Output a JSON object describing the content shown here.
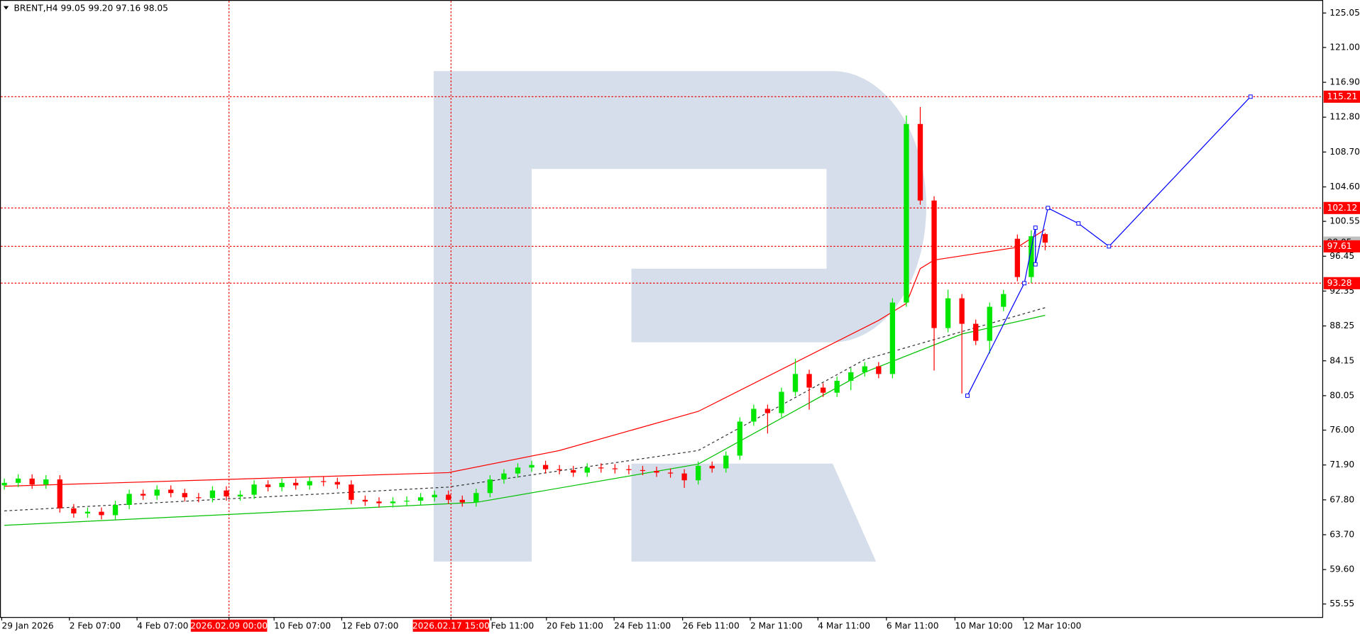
{
  "chart_data": {
    "type": "candlestick",
    "header": {
      "symbol": "BRENT,H4",
      "ohlc": "99.05 99.20 97.16 98.05"
    },
    "up_color": "#00e600",
    "down_color": "#ff0000",
    "ylim": [
      55.55,
      125.05
    ],
    "yticks": [
      125.05,
      {
        "value": 121,
        "label": "121.00"
      },
      {
        "value": 116.9,
        "label": "116.90"
      },
      {
        "value": 112.8,
        "label": "112.80"
      },
      {
        "value": 108.7,
        "label": "108.70"
      },
      {
        "value": 104.6,
        "label": "104.60"
      },
      100.55,
      96.45,
      92.35,
      88.25,
      84.15,
      80.05,
      {
        "value": 76,
        "label": "76.00"
      },
      {
        "value": 71.9,
        "label": "71.90"
      },
      {
        "value": 67.8,
        "label": "67.80"
      },
      {
        "value": 63.7,
        "label": "63.70"
      },
      {
        "value": 59.6,
        "label": "59.60"
      },
      55.55
    ],
    "x_labels": [
      {
        "text": "29 Jan 2026",
        "highlight": false
      },
      {
        "text": "2 Feb 07:00",
        "highlight": false
      },
      {
        "text": "4 Feb 07:00",
        "highlight": false
      },
      {
        "text": "2026.02.09 00:00",
        "highlight": true
      },
      {
        "text": "10 Feb 07:00",
        "highlight": false
      },
      {
        "text": "12 Feb 07:00",
        "highlight": false
      },
      {
        "text": "2026.02.17 15:00",
        "highlight": true
      },
      {
        "text": "Feb 11:00",
        "highlight": false
      },
      {
        "text": "20 Feb 11:00",
        "highlight": false
      },
      {
        "text": "24 Feb 11:00",
        "highlight": false
      },
      {
        "text": "26 Feb 11:00",
        "highlight": false
      },
      {
        "text": "2 Mar 11:00",
        "highlight": false
      },
      {
        "text": "4 Mar 11:00",
        "highlight": false
      },
      {
        "text": "6 Mar 11:00",
        "highlight": false
      },
      {
        "text": "10 Mar 10:00",
        "highlight": false
      },
      {
        "text": "12 Mar 10:00",
        "highlight": false
      }
    ],
    "open": [
      69.5,
      69.8,
      70.3,
      69.6,
      70.2,
      66.8,
      66.2,
      66.4,
      66.0,
      67.2,
      68.5,
      68.3,
      69.0,
      68.6,
      68.1,
      68.0,
      68.9,
      68.2,
      68.4,
      69.6,
      69.3,
      69.8,
      69.5,
      70.0,
      69.9,
      69.6,
      67.8,
      67.6,
      67.4,
      67.6,
      67.7,
      68.1,
      68.4,
      67.8,
      67.5,
      68.6,
      70.2,
      70.9,
      71.6,
      71.9,
      71.4,
      71.3,
      71.0,
      71.6,
      71.5,
      71.4,
      71.3,
      71.2,
      71.0,
      70.9,
      70.1,
      71.8,
      71.5,
      73.0,
      77.0,
      78.5,
      78.0,
      80.5,
      82.6,
      81.0,
      80.4,
      81.8,
      82.8,
      83.5,
      82.6,
      91.0,
      112.0,
      103.0,
      88.0,
      91.5,
      88.5,
      86.5,
      90.5,
      98.5,
      94.0,
      99.05
    ],
    "high": [
      70.3,
      70.8,
      70.8,
      70.7,
      70.7,
      67.3,
      66.9,
      66.9,
      67.7,
      69.0,
      69.0,
      69.5,
      69.5,
      69.1,
      68.6,
      69.4,
      69.4,
      68.9,
      70.1,
      70.1,
      70.3,
      70.3,
      70.5,
      70.5,
      70.4,
      70.1,
      68.3,
      68.1,
      68.1,
      68.2,
      68.6,
      68.9,
      68.9,
      68.3,
      69.1,
      70.7,
      71.4,
      72.1,
      72.4,
      72.4,
      71.9,
      71.8,
      72.1,
      72.1,
      72.0,
      71.9,
      71.8,
      71.7,
      71.5,
      71.4,
      72.3,
      72.3,
      73.5,
      77.5,
      79.0,
      79.0,
      81.0,
      84.4,
      83.1,
      81.5,
      82.3,
      83.3,
      84.0,
      84.0,
      91.5,
      113.0,
      114.0,
      103.5,
      92.5,
      92.0,
      89.0,
      91.0,
      92.5,
      99.0,
      99.5,
      99.2
    ],
    "low": [
      69.0,
      69.3,
      69.1,
      69.1,
      66.3,
      65.7,
      65.7,
      65.5,
      65.5,
      66.7,
      67.8,
      67.8,
      68.1,
      67.6,
      67.5,
      67.5,
      67.7,
      67.7,
      67.9,
      68.8,
      68.8,
      69.0,
      69.0,
      69.4,
      69.1,
      67.3,
      67.1,
      66.9,
      66.9,
      67.1,
      67.2,
      67.6,
      67.3,
      67.0,
      67.0,
      68.1,
      69.7,
      70.4,
      71.1,
      70.9,
      70.8,
      70.5,
      70.5,
      71.0,
      70.9,
      70.8,
      70.7,
      70.5,
      70.4,
      69.2,
      69.6,
      71.0,
      71.0,
      72.5,
      76.5,
      75.6,
      77.5,
      80.0,
      78.4,
      79.9,
      79.9,
      80.7,
      82.3,
      82.1,
      82.1,
      90.5,
      102.5,
      83.0,
      87.5,
      80.3,
      86.0,
      85.0,
      90.0,
      93.5,
      93.3,
      97.16
    ],
    "close": [
      69.8,
      70.3,
      69.6,
      70.2,
      66.8,
      66.2,
      66.4,
      66.0,
      67.2,
      68.5,
      68.3,
      69.0,
      68.6,
      68.1,
      68.0,
      68.9,
      68.2,
      68.4,
      69.6,
      69.3,
      69.8,
      69.5,
      70.0,
      69.9,
      69.6,
      67.8,
      67.6,
      67.4,
      67.6,
      67.7,
      68.1,
      68.4,
      67.8,
      67.5,
      68.6,
      70.2,
      70.9,
      71.6,
      71.9,
      71.4,
      71.3,
      71.0,
      71.6,
      71.5,
      71.4,
      71.3,
      71.2,
      71.0,
      70.9,
      70.1,
      71.8,
      71.5,
      73.0,
      77.0,
      78.5,
      78.0,
      80.5,
      82.6,
      81.0,
      80.4,
      81.8,
      82.8,
      83.5,
      82.6,
      91.0,
      112.0,
      103.0,
      88.0,
      91.5,
      88.5,
      86.5,
      90.5,
      92.0,
      94.0,
      98.8,
      98.05
    ],
    "indicators": [
      {
        "color": "#ff0000",
        "dash": false,
        "x": [
          0,
          32,
          40,
          50,
          63,
          65,
          66,
          67,
          73,
          75
        ],
        "values": [
          69.4,
          71.0,
          73.6,
          78.2,
          88.9,
          90.9,
          95.0,
          96.0,
          97.5,
          99.6
        ]
      },
      {
        "color": "#00c000",
        "dash": false,
        "x": [
          0,
          34,
          50,
          62,
          69,
          75
        ],
        "values": [
          64.8,
          67.5,
          72.0,
          82.8,
          87.3,
          89.5
        ]
      },
      {
        "color": "#333333",
        "dash": true,
        "x": [
          0,
          32,
          50,
          62,
          75
        ],
        "values": [
          66.5,
          69.3,
          73.6,
          84.3,
          90.4
        ]
      }
    ],
    "forecast": {
      "color": "#0000ff",
      "x": [
        69.4,
        73.5,
        74.3,
        74.3,
        75.2,
        77.4,
        79.6,
        89.8
      ],
      "values": [
        80.05,
        93.28,
        99.8,
        95.5,
        102.12,
        100.3,
        97.61,
        115.21
      ]
    },
    "levels": [
      115.21,
      102.12,
      97.61,
      93.28
    ],
    "last_price": 98.05
  }
}
